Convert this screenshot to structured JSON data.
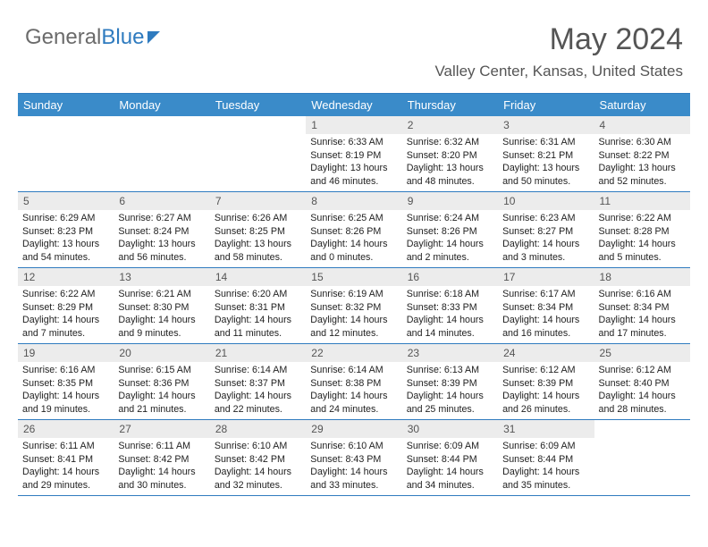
{
  "logo": {
    "part1": "General",
    "part2": "Blue"
  },
  "title": "May 2024",
  "subtitle": "Valley Center, Kansas, United States",
  "colors": {
    "header_bg": "#3a8bc9",
    "border": "#2f7bbf",
    "daynum_bg": "#ececec",
    "text": "#333333",
    "bg": "#ffffff"
  },
  "day_headers": [
    "Sunday",
    "Monday",
    "Tuesday",
    "Wednesday",
    "Thursday",
    "Friday",
    "Saturday"
  ],
  "weeks": [
    [
      {
        "empty": true
      },
      {
        "empty": true
      },
      {
        "empty": true
      },
      {
        "num": "1",
        "sunrise": "6:33 AM",
        "sunset": "8:19 PM",
        "daylight": "13 hours and 46 minutes."
      },
      {
        "num": "2",
        "sunrise": "6:32 AM",
        "sunset": "8:20 PM",
        "daylight": "13 hours and 48 minutes."
      },
      {
        "num": "3",
        "sunrise": "6:31 AM",
        "sunset": "8:21 PM",
        "daylight": "13 hours and 50 minutes."
      },
      {
        "num": "4",
        "sunrise": "6:30 AM",
        "sunset": "8:22 PM",
        "daylight": "13 hours and 52 minutes."
      }
    ],
    [
      {
        "num": "5",
        "sunrise": "6:29 AM",
        "sunset": "8:23 PM",
        "daylight": "13 hours and 54 minutes."
      },
      {
        "num": "6",
        "sunrise": "6:27 AM",
        "sunset": "8:24 PM",
        "daylight": "13 hours and 56 minutes."
      },
      {
        "num": "7",
        "sunrise": "6:26 AM",
        "sunset": "8:25 PM",
        "daylight": "13 hours and 58 minutes."
      },
      {
        "num": "8",
        "sunrise": "6:25 AM",
        "sunset": "8:26 PM",
        "daylight": "14 hours and 0 minutes."
      },
      {
        "num": "9",
        "sunrise": "6:24 AM",
        "sunset": "8:26 PM",
        "daylight": "14 hours and 2 minutes."
      },
      {
        "num": "10",
        "sunrise": "6:23 AM",
        "sunset": "8:27 PM",
        "daylight": "14 hours and 3 minutes."
      },
      {
        "num": "11",
        "sunrise": "6:22 AM",
        "sunset": "8:28 PM",
        "daylight": "14 hours and 5 minutes."
      }
    ],
    [
      {
        "num": "12",
        "sunrise": "6:22 AM",
        "sunset": "8:29 PM",
        "daylight": "14 hours and 7 minutes."
      },
      {
        "num": "13",
        "sunrise": "6:21 AM",
        "sunset": "8:30 PM",
        "daylight": "14 hours and 9 minutes."
      },
      {
        "num": "14",
        "sunrise": "6:20 AM",
        "sunset": "8:31 PM",
        "daylight": "14 hours and 11 minutes."
      },
      {
        "num": "15",
        "sunrise": "6:19 AM",
        "sunset": "8:32 PM",
        "daylight": "14 hours and 12 minutes."
      },
      {
        "num": "16",
        "sunrise": "6:18 AM",
        "sunset": "8:33 PM",
        "daylight": "14 hours and 14 minutes."
      },
      {
        "num": "17",
        "sunrise": "6:17 AM",
        "sunset": "8:34 PM",
        "daylight": "14 hours and 16 minutes."
      },
      {
        "num": "18",
        "sunrise": "6:16 AM",
        "sunset": "8:34 PM",
        "daylight": "14 hours and 17 minutes."
      }
    ],
    [
      {
        "num": "19",
        "sunrise": "6:16 AM",
        "sunset": "8:35 PM",
        "daylight": "14 hours and 19 minutes."
      },
      {
        "num": "20",
        "sunrise": "6:15 AM",
        "sunset": "8:36 PM",
        "daylight": "14 hours and 21 minutes."
      },
      {
        "num": "21",
        "sunrise": "6:14 AM",
        "sunset": "8:37 PM",
        "daylight": "14 hours and 22 minutes."
      },
      {
        "num": "22",
        "sunrise": "6:14 AM",
        "sunset": "8:38 PM",
        "daylight": "14 hours and 24 minutes."
      },
      {
        "num": "23",
        "sunrise": "6:13 AM",
        "sunset": "8:39 PM",
        "daylight": "14 hours and 25 minutes."
      },
      {
        "num": "24",
        "sunrise": "6:12 AM",
        "sunset": "8:39 PM",
        "daylight": "14 hours and 26 minutes."
      },
      {
        "num": "25",
        "sunrise": "6:12 AM",
        "sunset": "8:40 PM",
        "daylight": "14 hours and 28 minutes."
      }
    ],
    [
      {
        "num": "26",
        "sunrise": "6:11 AM",
        "sunset": "8:41 PM",
        "daylight": "14 hours and 29 minutes."
      },
      {
        "num": "27",
        "sunrise": "6:11 AM",
        "sunset": "8:42 PM",
        "daylight": "14 hours and 30 minutes."
      },
      {
        "num": "28",
        "sunrise": "6:10 AM",
        "sunset": "8:42 PM",
        "daylight": "14 hours and 32 minutes."
      },
      {
        "num": "29",
        "sunrise": "6:10 AM",
        "sunset": "8:43 PM",
        "daylight": "14 hours and 33 minutes."
      },
      {
        "num": "30",
        "sunrise": "6:09 AM",
        "sunset": "8:44 PM",
        "daylight": "14 hours and 34 minutes."
      },
      {
        "num": "31",
        "sunrise": "6:09 AM",
        "sunset": "8:44 PM",
        "daylight": "14 hours and 35 minutes."
      },
      {
        "empty": true
      }
    ]
  ],
  "labels": {
    "sunrise": "Sunrise:",
    "sunset": "Sunset:",
    "daylight": "Daylight:"
  }
}
